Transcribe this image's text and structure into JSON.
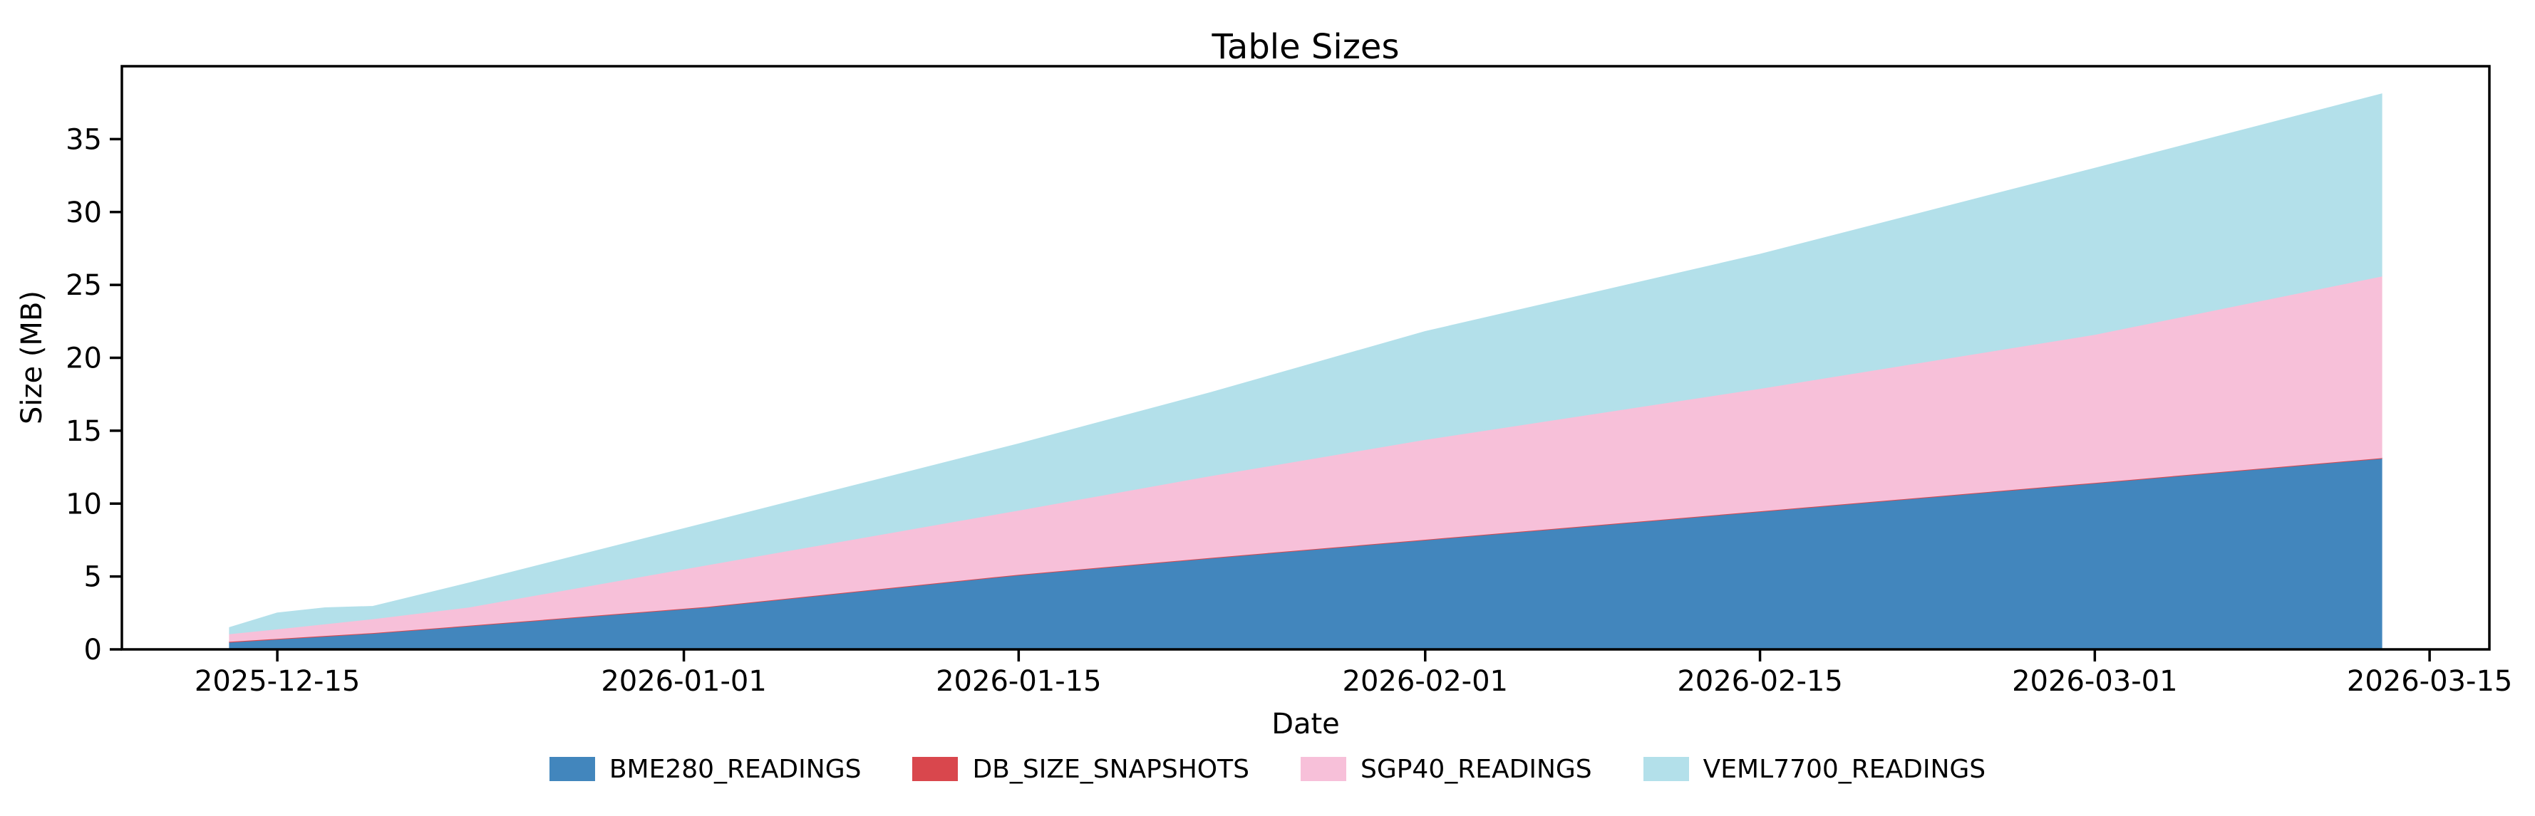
{
  "chart_data": {
    "type": "area",
    "stacked": true,
    "title": "Table Sizes",
    "xlabel": "Date",
    "ylabel": "Size (MB)",
    "grid": false,
    "legend_position": "bottom",
    "ylim": [
      0,
      40
    ],
    "x_range_days": [
      -4.5,
      94.5
    ],
    "x_epoch_date": "2025-12-13",
    "x_dates": [
      "2025-12-13",
      "2025-12-15",
      "2025-12-17",
      "2025-12-19",
      "2025-12-23",
      "2026-01-02",
      "2026-01-15",
      "2026-01-23",
      "2026-02-01",
      "2026-02-15",
      "2026-03-01",
      "2026-03-13"
    ],
    "x_days": [
      0,
      2,
      4,
      6,
      10,
      20,
      33,
      41,
      50,
      64,
      78,
      90
    ],
    "series": [
      {
        "name": "BME280_READINGS",
        "color": "#4286bd",
        "values": [
          0.5,
          0.7,
          0.9,
          1.1,
          1.6,
          2.9,
          5.1,
          6.25,
          7.5,
          9.45,
          11.4,
          13.1
        ]
      },
      {
        "name": "DB_SIZE_SNAPSHOTS",
        "color": "#d9474d",
        "values": [
          0.05,
          0.05,
          0.05,
          0.05,
          0.05,
          0.05,
          0.05,
          0.05,
          0.05,
          0.05,
          0.05,
          0.05
        ]
      },
      {
        "name": "SGP40_READINGS",
        "color": "#f7c0d9",
        "values": [
          0.52,
          0.65,
          0.8,
          0.95,
          1.25,
          2.85,
          4.4,
          5.6,
          6.85,
          8.4,
          10.15,
          12.45
        ]
      },
      {
        "name": "VEML7700_READINGS",
        "color": "#b3e0ea",
        "values": [
          0.43,
          1.1,
          1.1,
          0.85,
          1.65,
          2.9,
          4.55,
          5.7,
          7.4,
          9.2,
          11.4,
          12.5
        ]
      }
    ],
    "x_ticks": [
      {
        "label": "2025-12-15",
        "day": 2
      },
      {
        "label": "2026-01-01",
        "day": 19
      },
      {
        "label": "2026-01-15",
        "day": 33
      },
      {
        "label": "2026-02-01",
        "day": 50
      },
      {
        "label": "2026-02-15",
        "day": 64
      },
      {
        "label": "2026-03-01",
        "day": 78
      },
      {
        "label": "2026-03-15",
        "day": 92
      }
    ],
    "y_ticks": [
      0,
      5,
      10,
      15,
      20,
      25,
      30,
      35
    ]
  }
}
